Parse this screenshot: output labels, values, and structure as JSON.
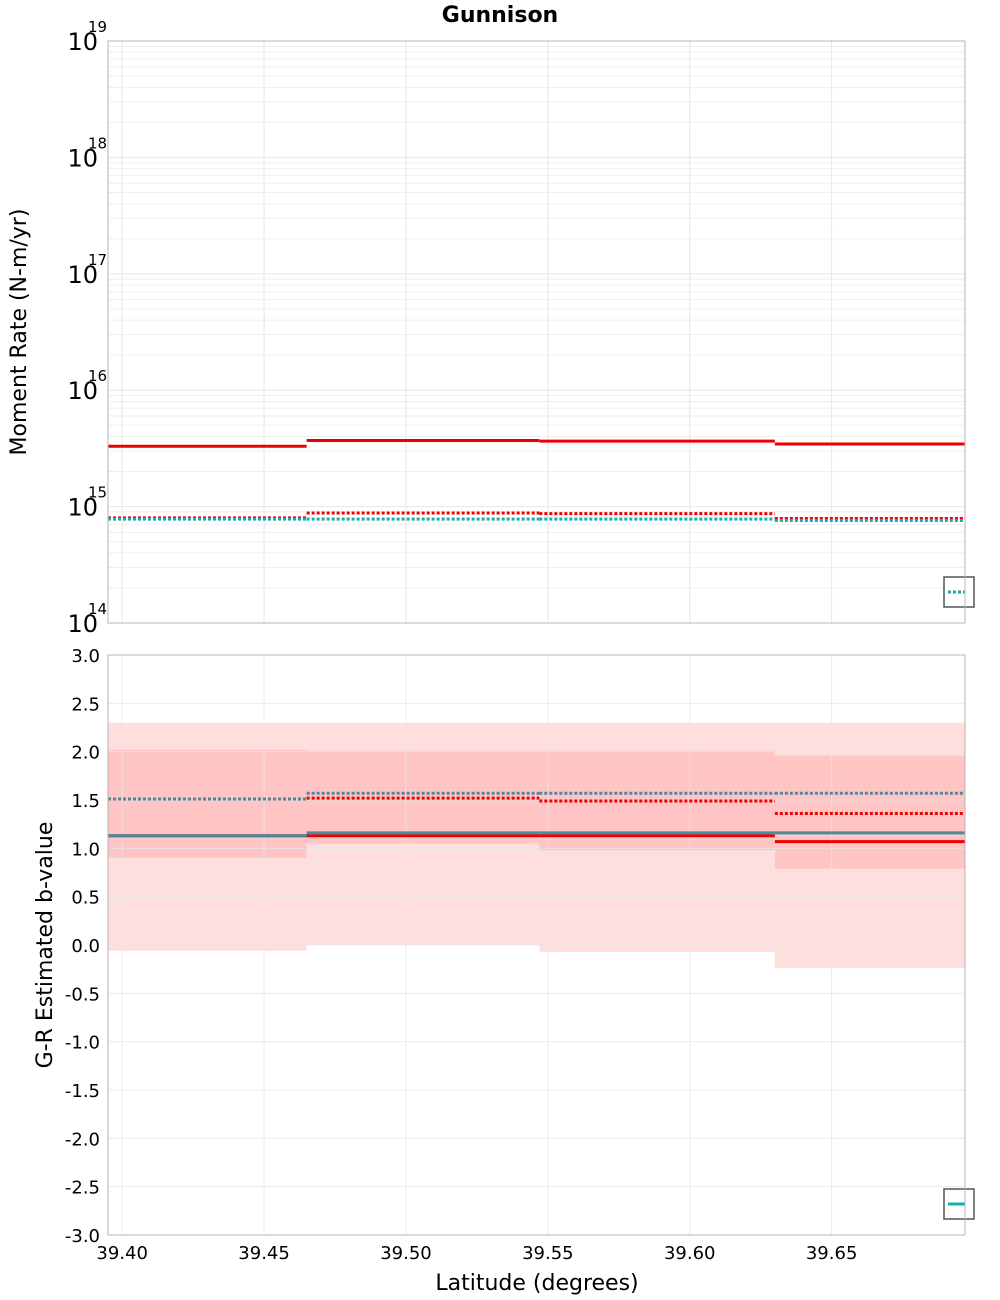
{
  "title": "Gunnison",
  "colors": {
    "red": "#ee0000",
    "teal": "#1aadad",
    "steel": "#4a8a9c",
    "band_light": "#ffdede",
    "band_dark": "#ffc4c4",
    "grid": "#e6e6e6",
    "frame": "#b5b5b5"
  },
  "chart_data": [
    {
      "type": "line",
      "panel": "top",
      "title": "Gunnison",
      "ylabel": "Moment Rate (N-m/yr)",
      "xlabel": "",
      "yscale": "log",
      "xlim": [
        39.395,
        39.697
      ],
      "ylim": [
        100000000000000.0,
        1e+19
      ],
      "ytick_exponents": [
        14,
        15,
        16,
        17,
        18,
        19
      ],
      "grid": true,
      "legend": "bottom-right (clipped)",
      "breaks": [
        39.395,
        39.465,
        39.547,
        39.63,
        39.697
      ],
      "series": [
        {
          "color": "red",
          "style": "solid",
          "values": [
            3300000000000000.0,
            3700000000000000.0,
            3650000000000000.0,
            3450000000000000.0
          ]
        },
        {
          "color": "red",
          "style": "dotted",
          "values": [
            800000000000000.0,
            880000000000000.0,
            870000000000000.0,
            790000000000000.0
          ]
        },
        {
          "color": "teal",
          "style": "dotted",
          "values": [
            780000000000000.0,
            780000000000000.0,
            780000000000000.0,
            760000000000000.0
          ]
        }
      ]
    },
    {
      "type": "line",
      "panel": "bottom",
      "ylabel": "G-R Estimated b-value",
      "xlabel": "Latitude (degrees)",
      "xlim": [
        39.395,
        39.697
      ],
      "ylim": [
        -3.0,
        3.0
      ],
      "yticks": [
        "-3.0",
        "-2.5",
        "-2.0",
        "-1.5",
        "-1.0",
        "-0.5",
        "0.0",
        "0.5",
        "1.0",
        "1.5",
        "2.0",
        "2.5",
        "3.0"
      ],
      "xticks": [
        "39.40",
        "39.45",
        "39.50",
        "39.55",
        "39.60",
        "39.65"
      ],
      "grid": true,
      "legend": "bottom-right (clipped)",
      "breaks": [
        39.395,
        39.465,
        39.547,
        39.63,
        39.697
      ],
      "bands": [
        {
          "color": "band_light",
          "lower": [
            -0.06,
            0.0,
            -0.07,
            -0.24
          ],
          "upper": [
            2.3,
            2.3,
            2.3,
            2.3
          ]
        },
        {
          "color": "band_dark",
          "lower": [
            0.9,
            1.05,
            0.98,
            0.79
          ],
          "upper": [
            2.02,
            2.01,
            2.01,
            1.96
          ]
        }
      ],
      "series": [
        {
          "color": "red",
          "style": "solid",
          "values": [
            1.13,
            1.13,
            1.13,
            1.07
          ]
        },
        {
          "color": "red",
          "style": "dotted",
          "values": [
            1.51,
            1.52,
            1.49,
            1.36
          ]
        },
        {
          "color": "steel",
          "style": "solid",
          "values": [
            1.13,
            1.16,
            1.16,
            1.16
          ]
        },
        {
          "color": "steel",
          "style": "dotted",
          "values": [
            1.51,
            1.57,
            1.57,
            1.57
          ]
        }
      ]
    }
  ]
}
